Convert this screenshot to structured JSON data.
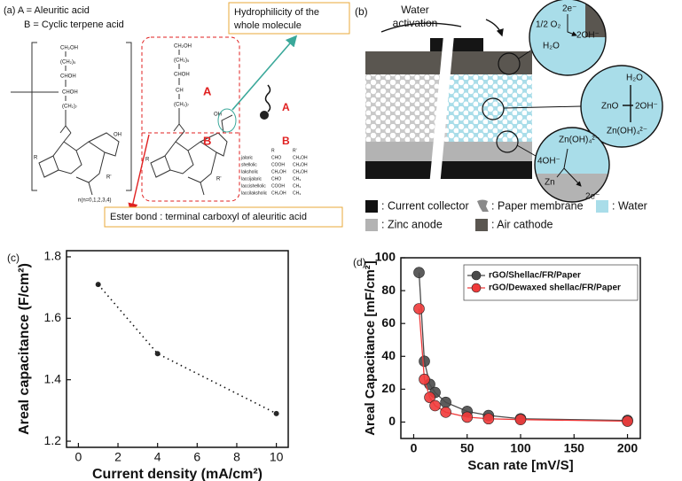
{
  "panel_a": {
    "label": "(a) A = Aleuritic acid",
    "label_b": "B = Cyclic terpene acid",
    "callout_hydrophilicity": [
      "Hydrophilicity of the",
      "whole molecule"
    ],
    "callout_ester": "Ester bond : terminal carboxyl of aleuritic acid",
    "region_labels": [
      "A",
      "B"
    ],
    "legend_labels": [
      "A",
      "B"
    ],
    "chain": [
      "CH₂OH",
      "(CH₂)₅",
      "CHOH",
      "CHOH",
      "CH",
      "(CH₂)₇"
    ],
    "substituents": [
      "OH",
      "R",
      "R'"
    ],
    "repeat": "n(n=0,1,2,3,4)",
    "table": {
      "header": [
        "R",
        "R'"
      ],
      "rows": [
        [
          "jalaric",
          "CHO",
          "CH₂OH"
        ],
        [
          "shellolic",
          "COOH",
          "CH₂OH"
        ],
        [
          "laksholic",
          "CH₂OH",
          "CH₂OH"
        ],
        [
          "laccijalaric",
          "CHO",
          "CH₃"
        ],
        [
          "laccishellolic",
          "COOH",
          "CH₃"
        ],
        [
          "laccilaksholic",
          "CH₂OH",
          "CH₃"
        ]
      ]
    }
  },
  "panel_b": {
    "label": "(b)",
    "activation": [
      "Water",
      "activation"
    ],
    "zoom_cathode": [
      "2e⁻",
      "1/2 O₂",
      "H₂O",
      "2OH⁻"
    ],
    "zoom_membrane": [
      "H₂O",
      "ZnO",
      "2OH⁻",
      "Zn(OH)₄²⁻"
    ],
    "zoom_anode": [
      "Zn(OH)₄²⁻",
      "4OH⁻",
      "Zn",
      "2e⁻"
    ],
    "legend": [
      {
        "name": ": Current collector",
        "color": "#111111"
      },
      {
        "name": ": Paper membrane",
        "color": "#8a8a8a"
      },
      {
        "name": ": Water",
        "color": "#a9dde9"
      },
      {
        "name": ": Zinc anode",
        "color": "#b3b3b3"
      },
      {
        "name": ": Air cathode",
        "color": "#5a5650"
      }
    ]
  },
  "chart_data": [
    {
      "type": "line",
      "panel": "(c)",
      "x_label": "Current density (mA/cm²)",
      "y_label": "Areal capacitance (F/cm²)",
      "x": [
        1,
        4,
        10
      ],
      "series": [
        {
          "color": "#111111",
          "values": [
            1.71,
            1.485,
            1.29
          ]
        }
      ],
      "line_style": "dotted",
      "marker_size": 3,
      "xlim": [
        -0.6,
        10.6
      ],
      "ylim": [
        1.18,
        1.82
      ],
      "xticks": [
        0,
        2,
        4,
        6,
        8,
        10
      ],
      "yticks": [
        1.2,
        1.4,
        1.6,
        1.8
      ]
    },
    {
      "type": "line",
      "panel": "(d)",
      "x_label": "Scan rate [mV/S]",
      "y_label": "Areal Capacitance [mF/cm²]",
      "x": [
        5,
        10,
        15,
        20,
        30,
        50,
        70,
        100,
        200
      ],
      "series": [
        {
          "name": "rGO/Shellac/FR/Paper",
          "color": "#4a4a4a",
          "values": [
            91,
            37,
            23,
            18,
            12,
            6.5,
            4,
            2,
            1
          ]
        },
        {
          "name": "rGO/Dewaxed shellac/FR/Paper",
          "color": "#f03a3a",
          "values": [
            69,
            26,
            15,
            10,
            6,
            3,
            2,
            1.5,
            0.5
          ]
        }
      ],
      "line_style": "solid",
      "marker_size": 6,
      "legend": "upper right",
      "xlim": [
        -12,
        212
      ],
      "ylim": [
        -10,
        100
      ],
      "xticks": [
        0,
        50,
        100,
        150,
        200
      ],
      "yticks": [
        0,
        20,
        40,
        60,
        80,
        100
      ]
    }
  ]
}
